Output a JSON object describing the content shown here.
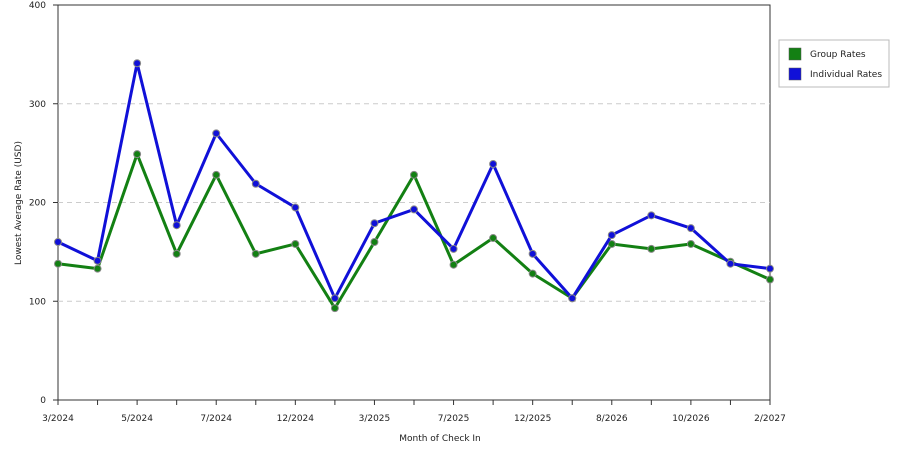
{
  "chart_data": {
    "type": "line",
    "x_label": "Month of Check In",
    "y_label": "Lowest Average Rate (USD)",
    "categories": [
      "3/2024",
      null,
      "5/2024",
      null,
      "7/2024",
      null,
      "12/2024",
      null,
      "3/2025",
      null,
      "7/2025",
      null,
      "12/2025",
      null,
      "8/2026",
      null,
      "10/2026",
      null,
      "2/2027"
    ],
    "series": [
      {
        "name": "Group Rates",
        "color": "#138013",
        "values": [
          138,
          133,
          249,
          148,
          228,
          148,
          158,
          93,
          160,
          228,
          137,
          164,
          128,
          103,
          158,
          153,
          158,
          140,
          122
        ]
      },
      {
        "name": "Individual Rates",
        "color": "#1010d8",
        "values": [
          160,
          141,
          341,
          177,
          270,
          219,
          195,
          103,
          179,
          193,
          153,
          239,
          148,
          103,
          167,
          187,
          174,
          138,
          133
        ]
      }
    ],
    "ylim": [
      0,
      400
    ],
    "yticks": [
      0,
      100,
      200,
      300,
      400
    ],
    "grid": true,
    "legend": "right"
  }
}
